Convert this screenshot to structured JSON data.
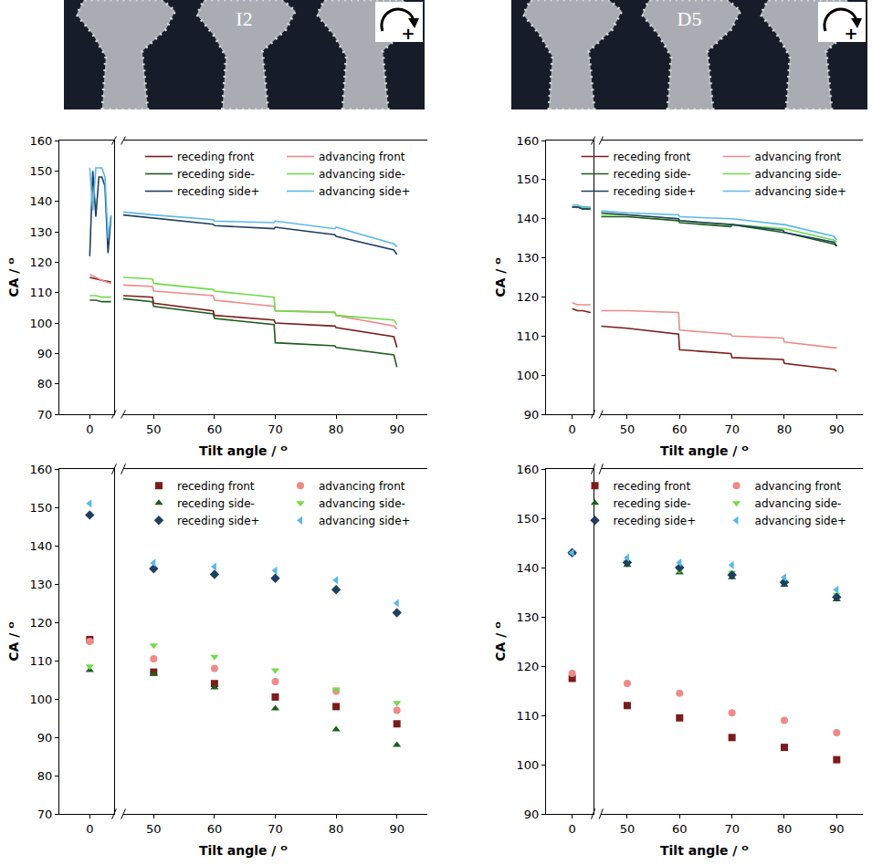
{
  "images": [
    {
      "label": "I2",
      "sign": "+"
    },
    {
      "label": "D5",
      "sign": "+"
    }
  ],
  "chart_data": [
    {
      "type": "line",
      "xlabel": "Tilt angle / ᴼ",
      "ylabel": "CA / ᴼ",
      "xlim": [
        -5,
        95
      ],
      "xbreak": [
        4,
        45
      ],
      "xticks": [
        0,
        50,
        60,
        70,
        80,
        90
      ],
      "ylim": [
        70,
        160
      ],
      "yticks": [
        70,
        80,
        90,
        100,
        110,
        120,
        130,
        140,
        150,
        160
      ],
      "legend": "top right",
      "series": [
        {
          "name": "receding front",
          "color": "#7a1c1c",
          "x": [
            0,
            1,
            2,
            3.5,
            45,
            49.8,
            50,
            59.8,
            60,
            69.8,
            70,
            79.8,
            80,
            89.5,
            90
          ],
          "values": [
            115,
            114.5,
            114,
            113.5,
            109,
            108.5,
            106.5,
            104,
            102.5,
            101,
            100,
            99,
            98.5,
            95.5,
            92
          ]
        },
        {
          "name": "advancing front",
          "color": "#ee8a8a",
          "x": [
            0,
            1,
            2,
            3.5,
            45,
            49.8,
            50,
            59.8,
            60,
            69.8,
            70,
            79.8,
            80,
            89.5,
            90
          ],
          "values": [
            116,
            115,
            114,
            113,
            112.5,
            112,
            110.5,
            109,
            107.5,
            105.5,
            104,
            103.5,
            102.5,
            99,
            98
          ]
        },
        {
          "name": "receding side-",
          "color": "#1e5c1e",
          "x": [
            0,
            1,
            2,
            3.5,
            45,
            49.8,
            50,
            59.8,
            60,
            69.8,
            70,
            79.8,
            80,
            89.5,
            90
          ],
          "values": [
            107.5,
            107.5,
            107,
            107,
            108,
            107,
            105.5,
            103,
            101.5,
            99.5,
            93.5,
            92.5,
            92,
            89.5,
            85.5
          ]
        },
        {
          "name": "advancing side-",
          "color": "#6fdc4a",
          "x": [
            0,
            1,
            2,
            3.5,
            45,
            49.8,
            50,
            59.8,
            60,
            69.8,
            70,
            79.8,
            80,
            89.5,
            90
          ],
          "values": [
            109,
            109,
            108.5,
            108.5,
            115,
            114.5,
            113,
            111,
            110.5,
            108.5,
            104,
            103.5,
            102.5,
            101,
            99.5
          ]
        },
        {
          "name": "receding side+",
          "color": "#1f3f5f",
          "x": [
            0,
            0.5,
            1,
            1.5,
            2,
            2.5,
            3,
            3.5,
            45,
            49.8,
            50,
            59.8,
            60,
            69.8,
            70,
            79.8,
            80,
            89.5,
            90
          ],
          "values": [
            122,
            150,
            135,
            148,
            148,
            145,
            123,
            135,
            135.5,
            134.5,
            134.5,
            132.5,
            132,
            131,
            131.5,
            129,
            128.5,
            124,
            122.5
          ]
        },
        {
          "name": "advancing side+",
          "color": "#5bb8e8",
          "x": [
            0,
            0.5,
            1,
            1.5,
            2,
            2.5,
            3,
            3.5,
            45,
            49.8,
            50,
            59.8,
            60,
            69.8,
            70,
            79.8,
            80,
            89.5,
            90
          ],
          "values": [
            151,
            137,
            151,
            151,
            151,
            148,
            128,
            135.5,
            136.5,
            135.5,
            135.5,
            134,
            133.5,
            133,
            133.5,
            131,
            131.5,
            126,
            125
          ]
        }
      ]
    },
    {
      "type": "line",
      "xlabel": "Tilt angle / ᴼ",
      "ylabel": "CA / ᴼ",
      "xlim": [
        -5,
        95
      ],
      "xbreak": [
        4,
        45
      ],
      "xticks": [
        0,
        50,
        60,
        70,
        80,
        90
      ],
      "ylim": [
        90,
        160
      ],
      "yticks": [
        90,
        100,
        110,
        120,
        130,
        140,
        150,
        160
      ],
      "legend": "top right",
      "series": [
        {
          "name": "receding front",
          "color": "#7a1c1c",
          "x": [
            0,
            1,
            2,
            3.5,
            45,
            50,
            59.8,
            60,
            69.8,
            70,
            79.8,
            80,
            89.5,
            90
          ],
          "values": [
            117,
            116.5,
            116.5,
            116,
            112.5,
            112,
            110.5,
            106.5,
            105.5,
            104.5,
            104,
            103,
            101.5,
            101
          ]
        },
        {
          "name": "advancing front",
          "color": "#ee8a8a",
          "x": [
            0,
            1,
            2,
            3.5,
            45,
            50,
            59.8,
            60,
            69.8,
            70,
            79.8,
            80,
            89.5,
            90
          ],
          "values": [
            118.5,
            118,
            118,
            118,
            116.5,
            116.5,
            116,
            111.5,
            110.5,
            110,
            109.5,
            108.5,
            107,
            107
          ]
        },
        {
          "name": "receding side-",
          "color": "#1e5c1e",
          "x": [
            0,
            1,
            2,
            3.5,
            45,
            50,
            59.8,
            60,
            69.8,
            70,
            79.8,
            80,
            89.5,
            90
          ],
          "values": [
            143,
            143,
            142.5,
            142.5,
            140.5,
            140.5,
            139.5,
            139,
            138,
            138.5,
            136.5,
            136.5,
            133.5,
            133
          ]
        },
        {
          "name": "advancing side-",
          "color": "#6fdc4a",
          "x": [
            0,
            1,
            2,
            3.5,
            45,
            50,
            59.8,
            60,
            69.8,
            70,
            79.8,
            80,
            89.5,
            90
          ],
          "values": [
            143,
            143,
            143,
            143,
            141,
            141,
            140,
            139.5,
            138.5,
            138.5,
            137.5,
            137.5,
            134.5,
            134
          ]
        },
        {
          "name": "receding side+",
          "color": "#1f3f5f",
          "x": [
            0,
            1,
            2,
            3.5,
            45,
            50,
            59.8,
            60,
            69.8,
            70,
            79.8,
            80,
            89.5,
            90
          ],
          "values": [
            143,
            143,
            142.5,
            142.5,
            141.5,
            141,
            140,
            139.5,
            138.5,
            138.5,
            137,
            136.5,
            134,
            133
          ]
        },
        {
          "name": "advancing side+",
          "color": "#5bb8e8",
          "x": [
            0,
            1,
            2,
            3.5,
            45,
            50,
            59.8,
            60,
            69.8,
            70,
            79.8,
            80,
            89.5,
            90
          ],
          "values": [
            143.5,
            143.5,
            143,
            143,
            142,
            141.5,
            141,
            140.5,
            140,
            140,
            138.5,
            138.5,
            135.5,
            134.5
          ]
        }
      ]
    },
    {
      "type": "scatter",
      "xlabel": "Tilt angle / ᴼ",
      "ylabel": "CA / ᴼ",
      "xlim": [
        -5,
        95
      ],
      "xbreak": [
        4,
        45
      ],
      "xticks": [
        0,
        50,
        60,
        70,
        80,
        90
      ],
      "ylim": [
        70,
        160
      ],
      "yticks": [
        70,
        80,
        90,
        100,
        110,
        120,
        130,
        140,
        150,
        160
      ],
      "legend": "top right",
      "series": [
        {
          "name": "receding front",
          "color": "#7a1c1c",
          "marker": "square",
          "x": [
            0,
            50,
            60,
            70,
            80,
            90
          ],
          "values": [
            115.5,
            107,
            104,
            100.5,
            98,
            93.5
          ]
        },
        {
          "name": "advancing front",
          "color": "#ee8a8a",
          "marker": "circle",
          "x": [
            0,
            50,
            60,
            70,
            80,
            90
          ],
          "values": [
            115,
            110.5,
            108,
            104.5,
            102,
            97
          ]
        },
        {
          "name": "receding side-",
          "color": "#1e5c1e",
          "marker": "triangle-up",
          "x": [
            0,
            50,
            60,
            70,
            80,
            90
          ],
          "values": [
            107.5,
            106.5,
            103,
            97.5,
            92,
            88
          ]
        },
        {
          "name": "advancing side-",
          "color": "#6fdc4a",
          "marker": "triangle-down",
          "x": [
            0,
            50,
            60,
            70,
            80,
            90
          ],
          "values": [
            108.5,
            114,
            111,
            107.5,
            102.5,
            99
          ]
        },
        {
          "name": "receding side+",
          "color": "#1f3f5f",
          "marker": "diamond",
          "x": [
            0,
            50,
            60,
            70,
            80,
            90
          ],
          "values": [
            148,
            134,
            132.5,
            131.5,
            128.5,
            122.5
          ]
        },
        {
          "name": "advancing side+",
          "color": "#5bb8e8",
          "marker": "triangle-left",
          "x": [
            0,
            50,
            60,
            70,
            80,
            90
          ],
          "values": [
            151,
            135.5,
            134.5,
            133.5,
            131,
            125
          ]
        }
      ]
    },
    {
      "type": "scatter",
      "xlabel": "Tilt angle / ᴼ",
      "ylabel": "CA / ᴼ",
      "xlim": [
        -5,
        95
      ],
      "xbreak": [
        4,
        45
      ],
      "xticks": [
        0,
        50,
        60,
        70,
        80,
        90
      ],
      "ylim": [
        90,
        160
      ],
      "yticks": [
        90,
        100,
        110,
        120,
        130,
        140,
        150,
        160
      ],
      "legend": "top right",
      "series": [
        {
          "name": "receding front",
          "color": "#7a1c1c",
          "marker": "square",
          "x": [
            0,
            50,
            60,
            70,
            80,
            90
          ],
          "values": [
            117.5,
            112,
            109.5,
            105.5,
            103.5,
            101
          ]
        },
        {
          "name": "advancing front",
          "color": "#ee8a8a",
          "marker": "circle",
          "x": [
            0,
            50,
            60,
            70,
            80,
            90
          ],
          "values": [
            118.5,
            116.5,
            114.5,
            110.5,
            109,
            106.5
          ]
        },
        {
          "name": "receding side-",
          "color": "#1e5c1e",
          "marker": "triangle-up",
          "x": [
            0,
            50,
            60,
            70,
            80,
            90
          ],
          "values": [
            143,
            140.5,
            139,
            138,
            136.5,
            133.5
          ]
        },
        {
          "name": "advancing side-",
          "color": "#6fdc4a",
          "marker": "triangle-down",
          "x": [
            0,
            50,
            60,
            70,
            80,
            90
          ],
          "values": [
            143,
            141,
            139.5,
            139,
            137,
            134.5
          ]
        },
        {
          "name": "receding side+",
          "color": "#1f3f5f",
          "marker": "diamond",
          "x": [
            0,
            50,
            60,
            70,
            80,
            90
          ],
          "values": [
            143,
            141,
            140,
            138.5,
            137,
            134
          ]
        },
        {
          "name": "advancing side+",
          "color": "#5bb8e8",
          "marker": "triangle-left",
          "x": [
            0,
            50,
            60,
            70,
            80,
            90
          ],
          "values": [
            143,
            142,
            141,
            140.5,
            138,
            135.5
          ]
        }
      ]
    }
  ]
}
